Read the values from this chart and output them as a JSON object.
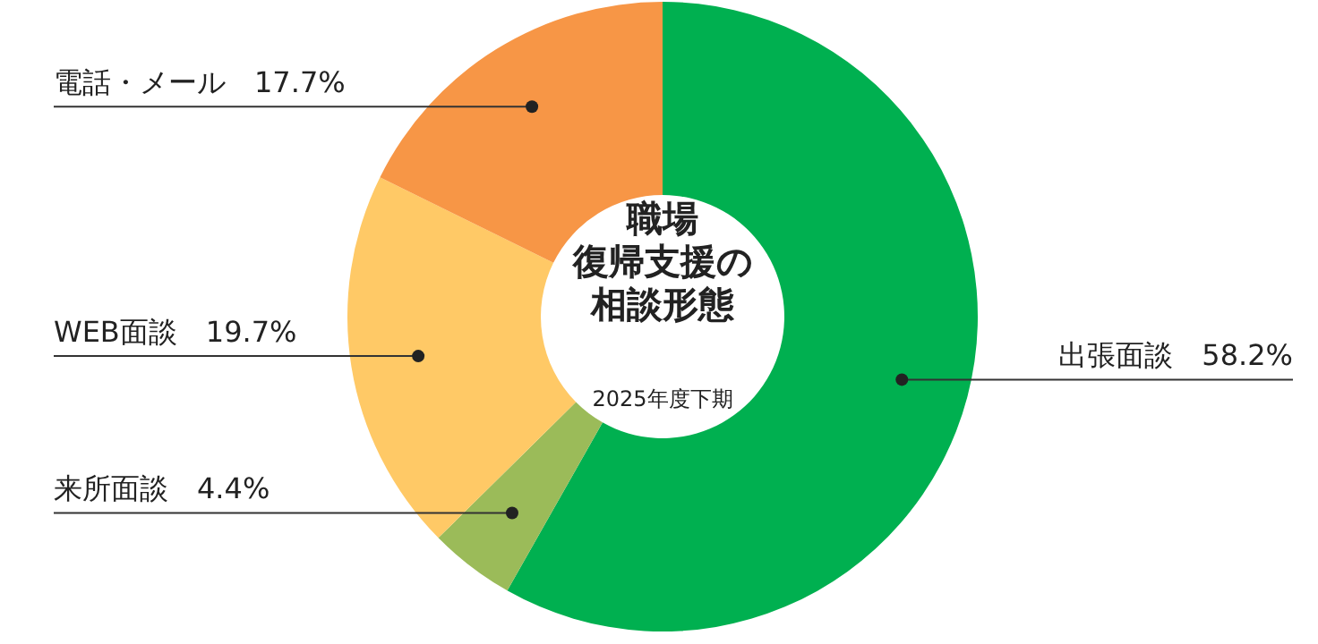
{
  "chart_data": {
    "type": "donut",
    "title": "職場復帰支援の相談形態",
    "subtitle": "2025年度下期",
    "categories": [
      "出張面談",
      "来所面談",
      "WEB面談",
      "電話・メール"
    ],
    "values": [
      58.2,
      4.4,
      19.7,
      17.7
    ],
    "value_labels": [
      "58.2%",
      "4.4%",
      "19.7%",
      "17.7%"
    ],
    "colors": [
      "#00b050",
      "#9bbb59",
      "#ffc966",
      "#f79646"
    ]
  }
}
